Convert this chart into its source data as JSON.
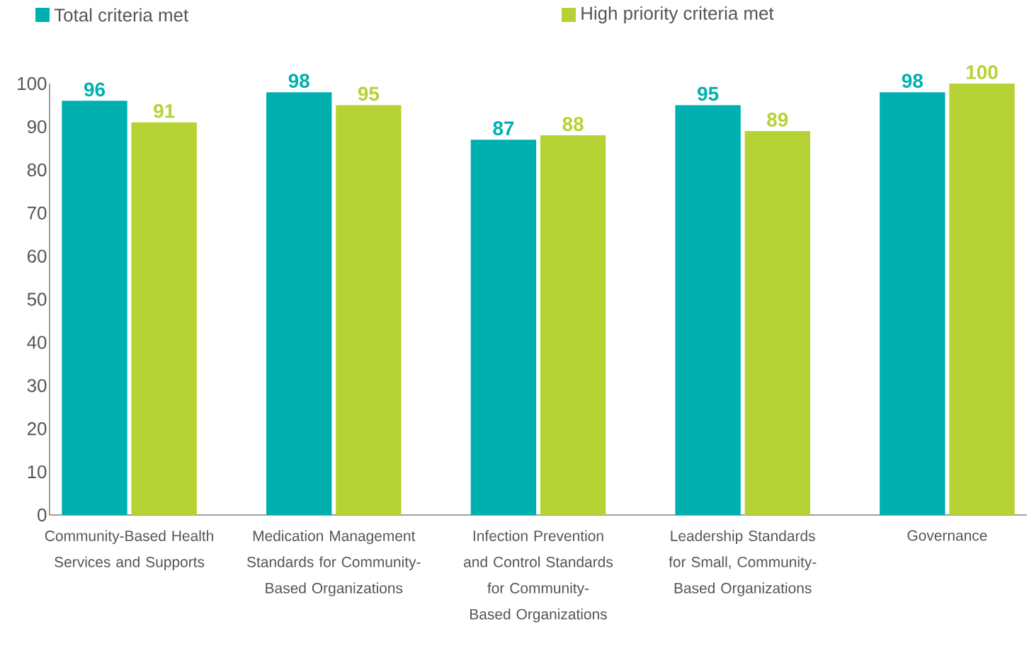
{
  "chart_data": {
    "type": "bar",
    "categories": [
      "Community-Based Health Services and Supports",
      "Medication Management Standards for Community-Based Organizations",
      "Infection Prevention and Control Standards for Community-Based Organizations",
      "Leadership Standards for Small, Community-Based Organizations",
      "Governance"
    ],
    "series": [
      {
        "name": "Total criteria met",
        "color": "#00b0b0",
        "values": [
          96,
          98,
          87,
          95,
          98
        ]
      },
      {
        "name": "High priority criteria met",
        "color": "#b5d334",
        "values": [
          91,
          95,
          88,
          89,
          100
        ]
      }
    ],
    "ylim": [
      0,
      100
    ],
    "yticks": [
      0,
      10,
      20,
      30,
      40,
      50,
      60,
      70,
      80,
      90,
      100
    ],
    "data_labels": true,
    "legend": "top",
    "grid": false
  }
}
